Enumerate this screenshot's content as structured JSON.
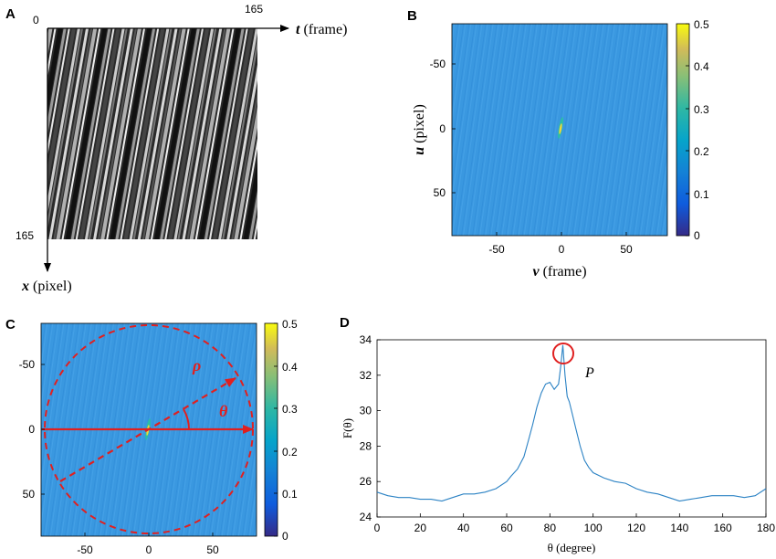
{
  "panels": {
    "A": {
      "letter": "A",
      "origin_label": "0",
      "t_max_label": "165",
      "x_max_label": "165",
      "t_axis_var": "t",
      "t_axis_unit": " (frame)",
      "x_axis_var": "x",
      "x_axis_unit": " (pixel)"
    },
    "B": {
      "letter": "B",
      "xlabel_var": "v",
      "xlabel_unit": " (frame)",
      "ylabel_var": "u",
      "ylabel_unit": " (pixel)",
      "x_ticks": [
        "-50",
        "0",
        "50"
      ],
      "y_ticks": [
        "-50",
        "0",
        "50"
      ],
      "colorbar_ticks": [
        "0.5",
        "0.4",
        "0.3",
        "0.2",
        "0.1",
        "0"
      ]
    },
    "C": {
      "letter": "C",
      "rho_label": "ρ",
      "theta_label": "θ",
      "x_ticks": [
        "-50",
        "0",
        "50"
      ],
      "y_ticks": [
        "-50",
        "0",
        "50"
      ],
      "colorbar_ticks": [
        "0.5",
        "0.4",
        "0.3",
        "0.2",
        "0.1",
        "0"
      ]
    },
    "D": {
      "letter": "D",
      "peak_label": "P",
      "ylabel": "F(θ)",
      "xlabel": "θ (degree)"
    }
  },
  "colors": {
    "field": "#3a98e0",
    "annotation_red": "#e02020",
    "line_blue": "#2b82c4"
  },
  "chart_data": {
    "type": "line",
    "x": [
      0,
      5,
      10,
      15,
      20,
      25,
      30,
      35,
      40,
      45,
      50,
      55,
      60,
      62,
      65,
      68,
      70,
      72,
      74,
      76,
      78,
      80,
      82,
      84,
      85,
      86,
      87,
      88,
      89,
      90,
      92,
      94,
      96,
      98,
      100,
      105,
      110,
      115,
      120,
      125,
      130,
      135,
      140,
      145,
      150,
      155,
      160,
      165,
      170,
      175,
      180
    ],
    "series": [
      {
        "values": [
          25.4,
          25.2,
          25.1,
          25.1,
          25.0,
          25.0,
          24.9,
          25.1,
          25.3,
          25.3,
          25.4,
          25.6,
          26.0,
          26.3,
          26.7,
          27.4,
          28.3,
          29.2,
          30.2,
          31.0,
          31.5,
          31.6,
          31.2,
          31.5,
          32.5,
          33.7,
          32.0,
          30.8,
          30.5,
          30.0,
          29.0,
          28.0,
          27.2,
          26.8,
          26.5,
          26.2,
          26.0,
          25.9,
          25.6,
          25.4,
          25.3,
          25.1,
          24.9,
          25.0,
          25.1,
          25.2,
          25.2,
          25.2,
          25.1,
          25.2,
          25.6
        ]
      }
    ],
    "xlim": [
      0,
      180
    ],
    "ylim": [
      24,
      34
    ],
    "x_ticks": [
      0,
      20,
      40,
      60,
      80,
      100,
      120,
      140,
      160,
      180
    ],
    "y_ticks": [
      24,
      26,
      28,
      30,
      32,
      34
    ],
    "grid": false
  }
}
